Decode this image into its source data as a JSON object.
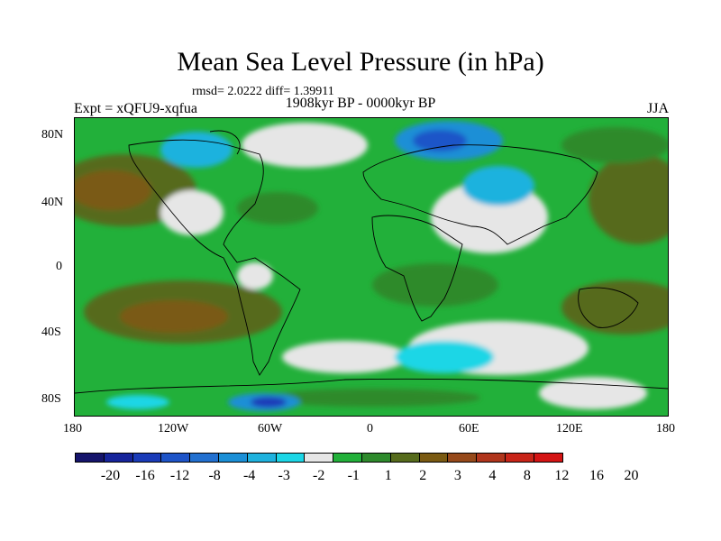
{
  "title": "Mean Sea Level Pressure (in hPa)",
  "stats": "rmsd= 2.0222 diff= 1.39911",
  "period": "1908kyr BP - 0000kyr BP",
  "experiment": "Expt = xQFU9-xqfua",
  "season": "JJA",
  "lat_labels": [
    "80N",
    "40N",
    "0",
    "40S",
    "80S"
  ],
  "lon_labels": [
    "180",
    "120W",
    "60W",
    "0",
    "60E",
    "120E",
    "180"
  ],
  "colorbar": {
    "labels": [
      "-20",
      "-16",
      "-12",
      "-8",
      "-4",
      "-3",
      "-2",
      "-1",
      "1",
      "2",
      "3",
      "4",
      "8",
      "12",
      "16",
      "20"
    ],
    "colors": [
      "#15146b",
      "#16249b",
      "#1a3bb8",
      "#1e54c8",
      "#2270d0",
      "#1b8fd6",
      "#1fb2de",
      "#1cd6e6",
      "#e6e6e6",
      "#22b03a",
      "#2e8a2c",
      "#566b1c",
      "#7a5a12",
      "#96491a",
      "#b0351c",
      "#c82418",
      "#d41414"
    ]
  }
}
